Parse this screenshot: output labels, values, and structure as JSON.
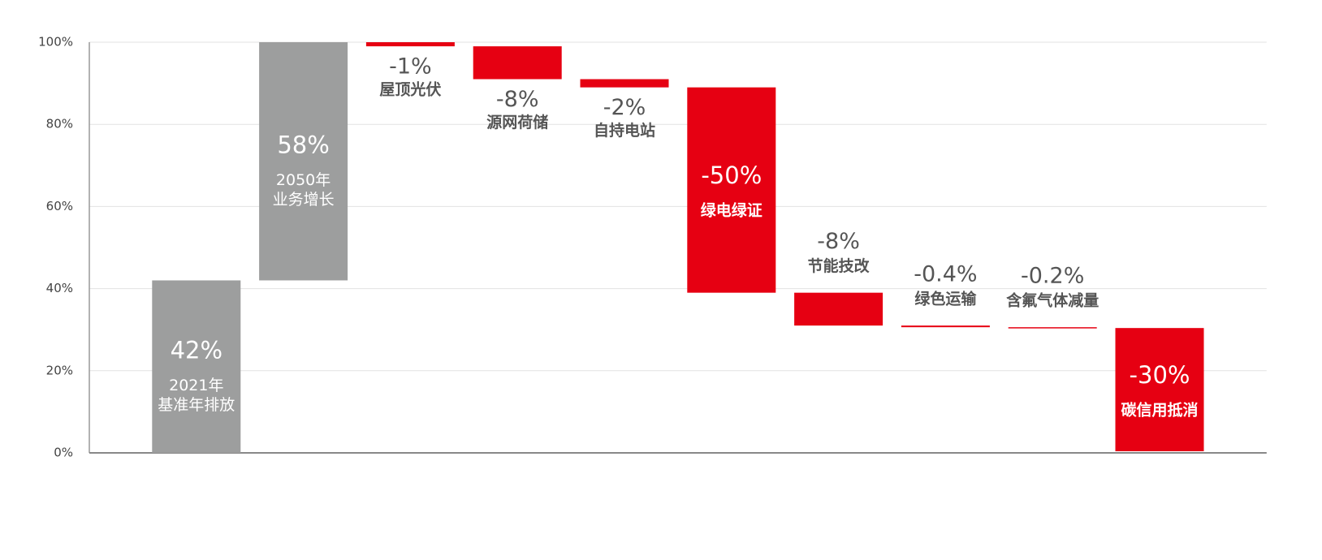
{
  "chart_data": {
    "type": "waterfall",
    "categories": [
      [
        "2021年",
        "基准年排放"
      ],
      [
        "2050年",
        "业务增长"
      ],
      [
        "屋顶光伏"
      ],
      [
        "源网荷储"
      ],
      [
        "自持电站"
      ],
      [
        "绿电绿证"
      ],
      [
        "节能技改"
      ],
      [
        "绿色运输"
      ],
      [
        "含氟气体减量"
      ],
      [
        "碳信用抵消"
      ]
    ],
    "values": [
      42,
      58,
      -1,
      -8,
      -2,
      -50,
      -8,
      -0.4,
      -0.2,
      -30
    ],
    "value_labels": [
      "42%",
      "58%",
      "-1%",
      "-8%",
      "-2%",
      "-50%",
      "-8%",
      "-0.4%",
      "-0.2%",
      "-30%"
    ],
    "increase_color": "#9d9e9e",
    "decrease_color": "#e60012",
    "ylim": [
      0,
      100
    ],
    "yticks": [
      {
        "value": 0,
        "label": "0%"
      },
      {
        "value": 20,
        "label": "20%"
      },
      {
        "value": 40,
        "label": "40%"
      },
      {
        "value": 60,
        "label": "60%"
      },
      {
        "value": 80,
        "label": "80%"
      },
      {
        "value": 100,
        "label": "100%"
      }
    ],
    "grid": true
  }
}
